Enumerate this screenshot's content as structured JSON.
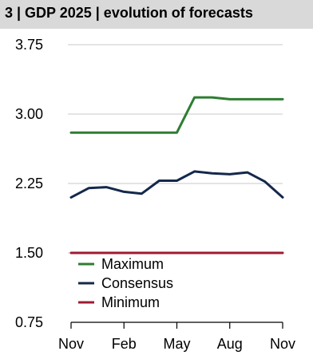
{
  "header": {
    "title": "3 | GDP 2025 | evolution of forecasts"
  },
  "chart_data": {
    "type": "line",
    "title": "3 | GDP 2025 | evolution of forecasts",
    "x_tick_labels": [
      "Nov",
      "Feb",
      "May",
      "Aug",
      "Nov"
    ],
    "x": [
      0,
      1,
      2,
      3,
      4,
      5,
      6,
      7,
      8,
      9,
      10,
      11,
      12
    ],
    "ylim": [
      0.75,
      3.75
    ],
    "y_ticks": [
      0.75,
      1.5,
      2.25,
      3.0,
      3.75
    ],
    "y_tick_labels": [
      "0.75",
      "1.50",
      "2.25",
      "3.00",
      "3.75"
    ],
    "grid": "horizontal",
    "legend_position": "lower-left",
    "series": [
      {
        "name": "Maximum",
        "color": "#2e7d32",
        "values": [
          2.8,
          2.8,
          2.8,
          2.8,
          2.8,
          2.8,
          2.8,
          3.18,
          3.18,
          3.16,
          3.16,
          3.16,
          3.16
        ]
      },
      {
        "name": "Consensus",
        "color": "#14284b",
        "values": [
          2.1,
          2.2,
          2.21,
          2.16,
          2.14,
          2.28,
          2.28,
          2.38,
          2.36,
          2.35,
          2.37,
          2.27,
          2.1
        ]
      },
      {
        "name": "Minimum",
        "color": "#9e1b32",
        "values": [
          1.5,
          1.5,
          1.5,
          1.5,
          1.5,
          1.5,
          1.5,
          1.5,
          1.5,
          1.5,
          1.5,
          1.5,
          1.5
        ]
      }
    ]
  }
}
